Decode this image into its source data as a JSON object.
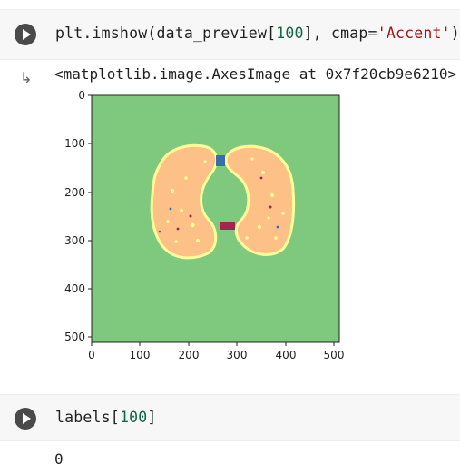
{
  "cell1": {
    "code": {
      "prefix": "plt.imshow(data_preview[",
      "index": "100",
      "middle": "], cmap=",
      "arg": "'Accent'",
      "suffix": ")"
    },
    "output_text": "<matplotlib.image.AxesImage at 0x7f20cb9e6210>"
  },
  "plot": {
    "x_ticks": [
      "0",
      "100",
      "200",
      "300",
      "400",
      "500"
    ],
    "y_ticks": [
      "0",
      "100",
      "200",
      "300",
      "400",
      "500"
    ],
    "colors": {
      "background": "#7fc97f",
      "lung": "#fdc086",
      "edge": "#ffff99",
      "airway": "#386cb0",
      "vessel": "#a0254f"
    }
  },
  "cell2": {
    "code": {
      "prefix": "labels[",
      "index": "100",
      "suffix": "]"
    },
    "output_text": "0"
  }
}
